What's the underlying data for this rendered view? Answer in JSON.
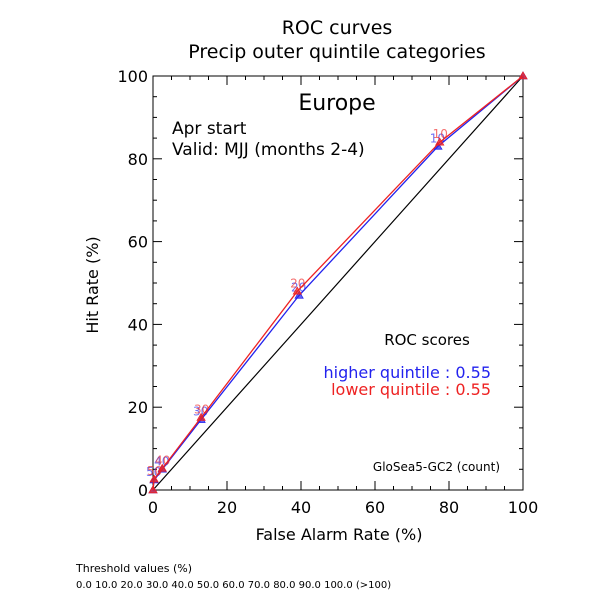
{
  "chart_data": {
    "type": "line",
    "title": "ROC curves",
    "subtitle": "Precip outer quintile categories",
    "region": "Europe",
    "start_text": "Apr start",
    "valid_text": "Valid: MJJ (months 2-4)",
    "xlabel": "False Alarm Rate (%)",
    "ylabel": "Hit Rate (%)",
    "xlim": [
      0,
      100
    ],
    "ylim": [
      0,
      100
    ],
    "x_ticks": [
      "0",
      "20",
      "40",
      "60",
      "80",
      "100"
    ],
    "y_ticks": [
      "0",
      "20",
      "40",
      "60",
      "80",
      "100"
    ],
    "grid": false,
    "diagonal": true,
    "scores_title": "ROC scores",
    "model_label": "GloSea5-GC2 (count)",
    "series": [
      {
        "name": "higher quintile",
        "score_label": "higher quintile : 0.55",
        "color": "#2222ee",
        "points": [
          {
            "x": 0,
            "y": 0,
            "label": ""
          },
          {
            "x": 0.3,
            "y": 2.4,
            "label": "50"
          },
          {
            "x": 2.5,
            "y": 5.0,
            "label": "40"
          },
          {
            "x": 13,
            "y": 17,
            "label": "30"
          },
          {
            "x": 39.5,
            "y": 47,
            "label": "20"
          },
          {
            "x": 77,
            "y": 83,
            "label": "10"
          },
          {
            "x": 100,
            "y": 100,
            "label": ""
          }
        ]
      },
      {
        "name": "lower quintile",
        "score_label": "lower quintile : 0.55",
        "color": "#ee2222",
        "points": [
          {
            "x": 0,
            "y": 0,
            "label": ""
          },
          {
            "x": 0.3,
            "y": 2.6,
            "label": "50"
          },
          {
            "x": 2.5,
            "y": 5.2,
            "label": "40"
          },
          {
            "x": 13,
            "y": 17.5,
            "label": "30"
          },
          {
            "x": 39,
            "y": 48,
            "label": "20"
          },
          {
            "x": 77.5,
            "y": 84,
            "label": "10"
          },
          {
            "x": 100,
            "y": 100,
            "label": ""
          }
        ]
      }
    ]
  },
  "footer": {
    "threshold_title": "Threshold values (%)",
    "threshold_values": "0.0 10.0 20.0 30.0 40.0 50.0 60.0 70.0 80.0 90.0 100.0 (>100)"
  }
}
